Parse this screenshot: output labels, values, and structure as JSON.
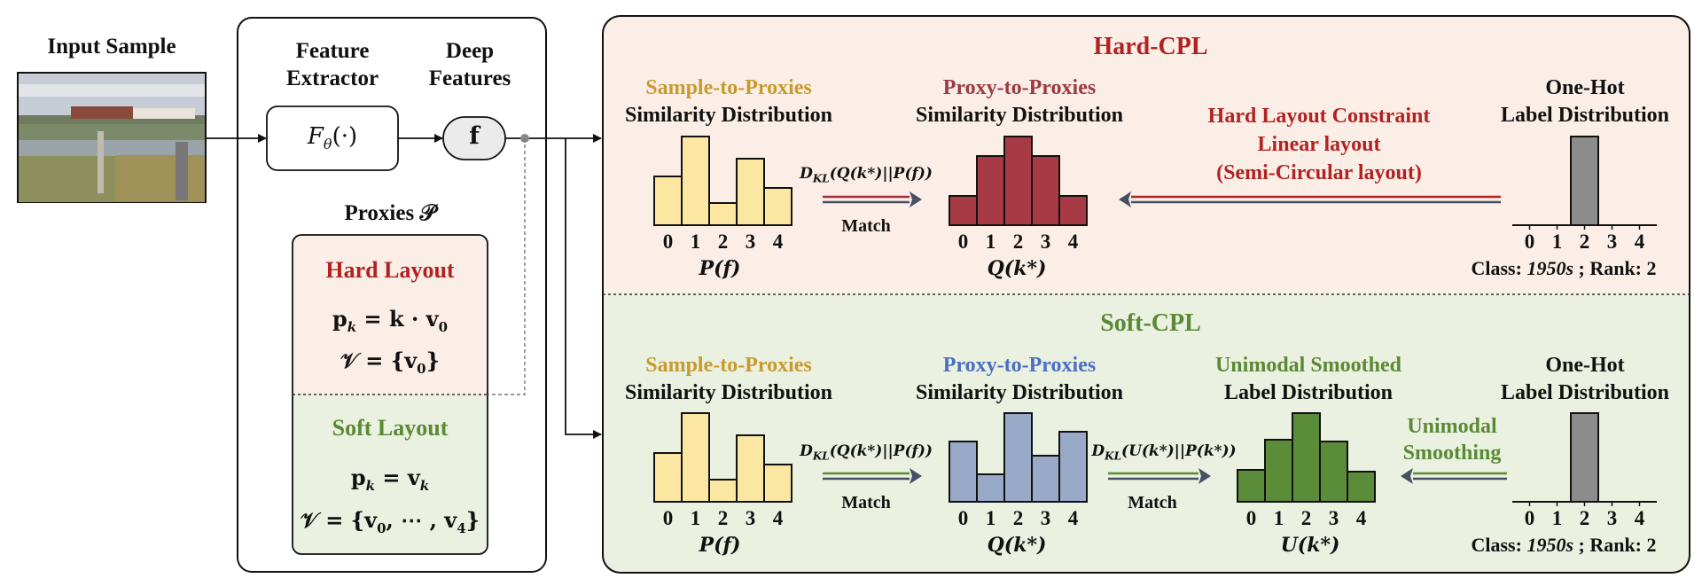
{
  "input": {
    "title": "Input Sample"
  },
  "backbone": {
    "extractor_title_1": "Feature",
    "extractor_title_2": "Extractor",
    "features_title_1": "Deep",
    "features_title_2": "Features",
    "extractor_symbol": "F",
    "extractor_sub": "θ",
    "extractor_args": "(·)",
    "feature_symbol": "f"
  },
  "proxies": {
    "title": "Proxies 𝒫",
    "hard_title": "Hard Layout",
    "hard_eq1": "p",
    "hard_eq1_rest": " = k · v",
    "hard_eq2": "𝒱 = {v",
    "hard_eq2_end": "}",
    "soft_title": "Soft Layout",
    "soft_eq1": "p",
    "soft_eq1_rest": " = v",
    "soft_eq2": "𝒱 = {v",
    "soft_eq2_mid": ", ⋯ , v",
    "soft_eq2_end": "}",
    "sub_k": "k",
    "sub_0": "0",
    "sub_4": "4"
  },
  "hard": {
    "title": "Hard-CPL",
    "s2p_line1": "Sample-to-Proxies",
    "s2p_line2": "Similarity Distribution",
    "p2p_line1": "Proxy-to-Proxies",
    "p2p_line2": "Similarity Distribution",
    "constraint_line1": "Hard Layout Constraint",
    "constraint_line2": "Linear layout",
    "constraint_line3": "(Semi-Circular layout)",
    "onehot_line1": "One-Hot",
    "onehot_line2": "Label Distribution",
    "kl": "D",
    "kl_sub": "KL",
    "kl_args": "(Q(k*)||P(f))",
    "match": "Match",
    "p_label": "P(f)",
    "q_label": "Q(k*)",
    "class_prefix": "Class: ",
    "class_value": "1950s",
    "rank_text": " ; Rank: 2"
  },
  "soft": {
    "title": "Soft-CPL",
    "s2p_line1": "Sample-to-Proxies",
    "s2p_line2": "Similarity Distribution",
    "p2p_line1": "Proxy-to-Proxies",
    "p2p_line2": "Similarity Distribution",
    "uni_line1": "Unimodal Smoothed",
    "uni_line2": "Label Distribution",
    "onehot_line1": "One-Hot",
    "onehot_line2": "Label Distribution",
    "smooth_line1": "Unimodal",
    "smooth_line2": "Smoothing",
    "kl1": "D",
    "kl1_sub": "KL",
    "kl1_args": "(Q(k*)||P(f))",
    "kl2": "D",
    "kl2_sub": "KL",
    "kl2_args": "(U(k*)||P(k*))",
    "match1": "Match",
    "match2": "Match",
    "p_label": "P(f)",
    "q_label": "Q(k*)",
    "u_label": "U(k*)",
    "class_prefix": "Class: ",
    "class_value": "1950s",
    "rank_text": " ; Rank: 2"
  },
  "chart_data": [
    {
      "type": "bar",
      "name": "hard-sample-to-proxies",
      "categories": [
        "0",
        "1",
        "2",
        "3",
        "4"
      ],
      "values": [
        0.55,
        1.0,
        0.25,
        0.75,
        0.42
      ],
      "color": "#fbe6a2"
    },
    {
      "type": "bar",
      "name": "hard-proxy-to-proxies",
      "categories": [
        "0",
        "1",
        "2",
        "3",
        "4"
      ],
      "values": [
        0.33,
        0.78,
        1.0,
        0.78,
        0.33
      ],
      "color": "#a83a45"
    },
    {
      "type": "bar",
      "name": "hard-one-hot",
      "categories": [
        "0",
        "1",
        "2",
        "3",
        "4"
      ],
      "values": [
        0,
        0,
        1.0,
        0,
        0
      ],
      "color": "#8c8c8c"
    },
    {
      "type": "bar",
      "name": "soft-sample-to-proxies",
      "categories": [
        "0",
        "1",
        "2",
        "3",
        "4"
      ],
      "values": [
        0.55,
        1.0,
        0.25,
        0.75,
        0.42
      ],
      "color": "#fbe6a2"
    },
    {
      "type": "bar",
      "name": "soft-proxy-to-proxies",
      "categories": [
        "0",
        "1",
        "2",
        "3",
        "4"
      ],
      "values": [
        0.68,
        0.31,
        1.0,
        0.52,
        0.79
      ],
      "color": "#98aac8"
    },
    {
      "type": "bar",
      "name": "soft-unimodal-smoothed",
      "categories": [
        "0",
        "1",
        "2",
        "3",
        "4"
      ],
      "values": [
        0.36,
        0.7,
        1.0,
        0.68,
        0.34
      ],
      "color": "#5b8c3a"
    },
    {
      "type": "bar",
      "name": "soft-one-hot",
      "categories": [
        "0",
        "1",
        "2",
        "3",
        "4"
      ],
      "values": [
        0,
        0,
        1.0,
        0,
        0
      ],
      "color": "#8c8c8c"
    }
  ],
  "colors": {
    "hard_bg": "#fbeee6",
    "soft_bg": "#eaf1e0",
    "hard_title": "#b22222",
    "soft_title": "#5a8a35",
    "gold": "#c99a2e",
    "p2p_hard": "#9c3b44",
    "p2p_soft": "#4a6fc4",
    "uni_green": "#5a8a35",
    "arrow_dark": "#465064"
  }
}
